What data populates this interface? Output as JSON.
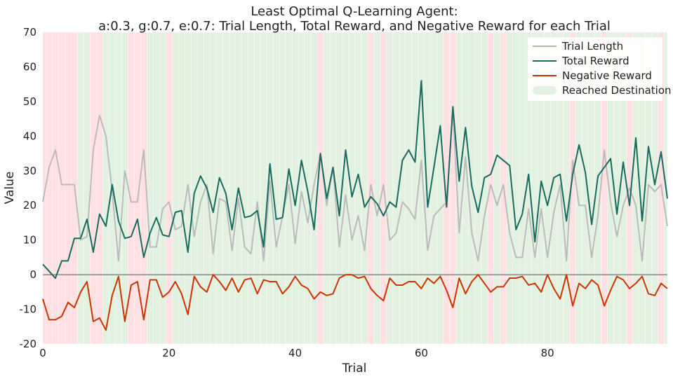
{
  "chart_data": {
    "type": "line",
    "title_lines": [
      "Least Optimal Q-Learning Agent:",
      "a:0.3, g:0.7, e:0.7: Trial Length, Total Reward, and Negative Reward for each Trial"
    ],
    "xlabel": "Trial",
    "ylabel": "Value",
    "xlim": [
      0,
      99
    ],
    "ylim": [
      -20,
      70
    ],
    "xticks": [
      0,
      20,
      40,
      60,
      80
    ],
    "yticks": [
      -20,
      -10,
      0,
      10,
      20,
      30,
      40,
      50,
      60,
      70
    ],
    "grid": false,
    "legend_position": "top-right",
    "colors": {
      "trial_length": "#b3b3b3",
      "total_reward": "#196b60",
      "negative_reward": "#cc3300",
      "reached": "#e3f2e0",
      "not_reached": "#ffe1e3",
      "zero_line": "#555555"
    },
    "legend": [
      {
        "key": "trial_length",
        "label": "Trial Length",
        "kind": "line"
      },
      {
        "key": "total_reward",
        "label": "Total Reward",
        "kind": "line"
      },
      {
        "key": "negative_reward",
        "label": "Negative Reward",
        "kind": "line"
      },
      {
        "key": "reached",
        "label": "Reached Destination",
        "kind": "patch"
      }
    ],
    "x": [
      0,
      1,
      2,
      3,
      4,
      5,
      6,
      7,
      8,
      9,
      10,
      11,
      12,
      13,
      14,
      15,
      16,
      17,
      18,
      19,
      20,
      21,
      22,
      23,
      24,
      25,
      26,
      27,
      28,
      29,
      30,
      31,
      32,
      33,
      34,
      35,
      36,
      37,
      38,
      39,
      40,
      41,
      42,
      43,
      44,
      45,
      46,
      47,
      48,
      49,
      50,
      51,
      52,
      53,
      54,
      55,
      56,
      57,
      58,
      59,
      60,
      61,
      62,
      63,
      64,
      65,
      66,
      67,
      68,
      69,
      70,
      71,
      72,
      73,
      74,
      75,
      76,
      77,
      78,
      79,
      80,
      81,
      82,
      83,
      84,
      85,
      86,
      87,
      88,
      89,
      90,
      91,
      92,
      93,
      94,
      95,
      96,
      97,
      98,
      99
    ],
    "reached_destination": [
      false,
      false,
      false,
      false,
      false,
      false,
      true,
      true,
      false,
      false,
      true,
      true,
      true,
      true,
      false,
      false,
      false,
      true,
      true,
      true,
      false,
      true,
      true,
      true,
      true,
      true,
      true,
      true,
      true,
      true,
      true,
      true,
      true,
      true,
      true,
      true,
      true,
      true,
      true,
      true,
      true,
      true,
      true,
      true,
      false,
      true,
      true,
      true,
      true,
      true,
      true,
      true,
      false,
      true,
      false,
      true,
      true,
      true,
      true,
      true,
      true,
      true,
      true,
      true,
      false,
      false,
      true,
      true,
      true,
      true,
      true,
      false,
      true,
      false,
      true,
      true,
      true,
      true,
      true,
      true,
      true,
      true,
      true,
      true,
      false,
      true,
      true,
      true,
      true,
      false,
      true,
      true,
      true,
      false,
      true,
      true,
      true,
      true,
      false,
      true
    ],
    "series": [
      {
        "key": "trial_length",
        "name": "Trial Length",
        "values": [
          21,
          31,
          36,
          26,
          26,
          26,
          10,
          11,
          36,
          46,
          40,
          24,
          4,
          30,
          21,
          21,
          36,
          8,
          8,
          19,
          21,
          13,
          14,
          26,
          11,
          21,
          26,
          6,
          22,
          21,
          7,
          22,
          8,
          6,
          21,
          4,
          27,
          8,
          17,
          26,
          9,
          24,
          15,
          26,
          35,
          20,
          31,
          8,
          23,
          10,
          17,
          7,
          26,
          17,
          26,
          10,
          12,
          21,
          19,
          16,
          33,
          7,
          17,
          19,
          21,
          48,
          12,
          34,
          12,
          4,
          17,
          26,
          20,
          26,
          12,
          5,
          5,
          19,
          5,
          19,
          5,
          18,
          26,
          4,
          33,
          20,
          20,
          5,
          17,
          36,
          21,
          11,
          20,
          25,
          20,
          4,
          26,
          24,
          26,
          14
        ]
      },
      {
        "key": "total_reward",
        "name": "Total Reward",
        "values": [
          3,
          1,
          -1,
          4,
          4,
          10.5,
          10.5,
          16,
          6.5,
          17.5,
          14,
          26,
          15.5,
          10.5,
          11,
          16,
          5,
          12,
          16.5,
          11.5,
          11,
          18,
          18.5,
          6.5,
          23.5,
          28.5,
          25,
          18,
          28,
          23.5,
          13,
          25,
          16.5,
          17,
          18.5,
          8,
          32,
          16,
          16.5,
          30.5,
          20,
          33,
          24,
          13,
          35,
          22,
          31,
          17,
          36,
          22.5,
          29,
          19.5,
          22.5,
          20.5,
          17,
          21,
          19.5,
          33,
          36,
          32.5,
          56,
          19.5,
          31,
          43,
          19.5,
          48.5,
          27,
          42.5,
          25.5,
          18,
          28,
          29,
          34.5,
          33,
          31.5,
          13,
          17.5,
          29,
          9.5,
          27,
          20,
          28,
          29,
          15.5,
          29,
          37.5,
          29.5,
          14.5,
          28.5,
          31,
          33.5,
          17.5,
          32.5,
          20,
          39.5,
          15.5,
          37,
          26,
          35.5,
          22
        ]
      },
      {
        "key": "negative_reward",
        "name": "Negative Reward",
        "values": [
          -7,
          -13,
          -13,
          -12,
          -8,
          -9.5,
          -5,
          -2,
          -13.5,
          -12.5,
          -16,
          -6,
          -0.5,
          -13.5,
          -3,
          -2,
          -13,
          -1.5,
          -1.5,
          -6.5,
          -5,
          -2,
          -5.5,
          -11.5,
          -0.5,
          -3.5,
          -5,
          0,
          -2,
          -4.5,
          -1,
          -5,
          -1.5,
          -1,
          -5.5,
          -1.5,
          -2,
          -2,
          -5.5,
          -3.5,
          -0.5,
          -3,
          -4,
          -7,
          -5,
          -6,
          -5.5,
          -1,
          0,
          0,
          -1,
          -0.5,
          -4,
          -6,
          -7.5,
          -1,
          -3,
          -3,
          -2,
          -2,
          -4,
          -1,
          -2.5,
          -0.5,
          -4.5,
          -9.5,
          -1,
          -5.5,
          -2,
          0,
          -2.5,
          -5,
          -3.5,
          -3.5,
          -1,
          -1,
          -0.5,
          -3,
          -2.5,
          -5,
          0,
          -4,
          -7,
          0,
          -9,
          -2.5,
          -4,
          -1.5,
          -3,
          -9,
          -4.5,
          -0.5,
          -1.5,
          -4,
          -2.5,
          -0.5,
          -5.5,
          -6,
          -2.5,
          -4
        ]
      }
    ]
  }
}
